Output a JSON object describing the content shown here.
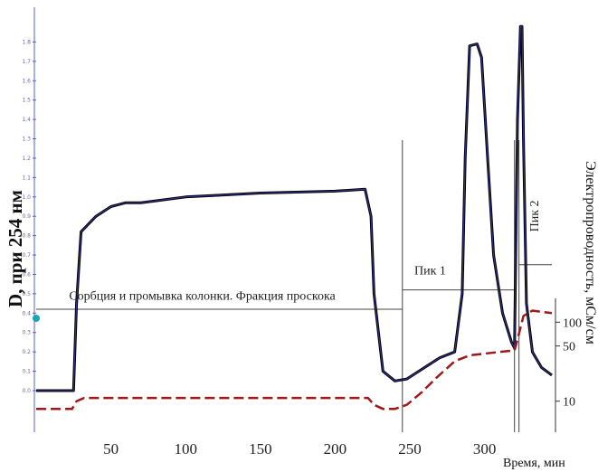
{
  "chart_data": {
    "type": "line",
    "ylabel": "D, при 254 нм",
    "y2label": "Электропроводность, мСм/см",
    "xlabel": "Время, мин",
    "xlim": [
      0,
      345
    ],
    "ylim": [
      0,
      1.9
    ],
    "y2lim": [
      5,
      200
    ],
    "y2_scale": "log",
    "x_ticks": [
      "50",
      "100",
      "150",
      "200",
      "250",
      "300"
    ],
    "y_ticks": [
      "0.0",
      "0.1",
      "0.2",
      "0.3",
      "0.4",
      "0.5",
      "0.6",
      "0.7",
      "0.8",
      "0.9",
      "1.0",
      "1.1",
      "1.2",
      "1.3",
      "1.4",
      "1.5",
      "1.6",
      "1.7",
      "1.8"
    ],
    "y2_ticks": [
      "10",
      "50",
      "100"
    ],
    "grid": false,
    "series": [
      {
        "axis": "left",
        "color": "#000000",
        "x": [
          0,
          25,
          27,
          30,
          40,
          50,
          60,
          70,
          80,
          100,
          150,
          200,
          220,
          224,
          226,
          232,
          240,
          248,
          260,
          270,
          280,
          285,
          287,
          290,
          295,
          298,
          302,
          306,
          312,
          318,
          320,
          322,
          324,
          325,
          326,
          328,
          332,
          338,
          345
        ],
        "y": [
          0,
          0,
          0.45,
          0.82,
          0.9,
          0.95,
          0.97,
          0.97,
          0.98,
          1.0,
          1.02,
          1.03,
          1.04,
          0.9,
          0.5,
          0.1,
          0.05,
          0.06,
          0.12,
          0.17,
          0.2,
          0.5,
          1.2,
          1.78,
          1.79,
          1.72,
          1.2,
          0.7,
          0.4,
          0.25,
          0.22,
          1.4,
          1.88,
          1.88,
          1.3,
          0.45,
          0.2,
          0.12,
          0.08
        ]
      },
      {
        "axis": "right",
        "color": "#a01818",
        "dashed": true,
        "x": [
          0,
          24,
          27,
          32,
          50,
          100,
          150,
          200,
          222,
          226,
          232,
          240,
          248,
          258,
          268,
          280,
          290,
          300,
          310,
          320,
          322,
          326,
          332,
          345
        ],
        "y": [
          8,
          8,
          10,
          11,
          11,
          11,
          11,
          11,
          11,
          9,
          8,
          8,
          9,
          13,
          20,
          32,
          38,
          40,
          42,
          44,
          60,
          120,
          140,
          130
        ]
      }
    ],
    "vlines": [
      245,
      320,
      323
    ],
    "hlines": [
      {
        "y": 0.42,
        "x": [
          0,
          245
        ]
      },
      {
        "y": 0.52,
        "x": [
          245,
          320
        ]
      },
      {
        "y": 0.65,
        "x": [
          323,
          345
        ]
      }
    ],
    "annotations": [
      {
        "text": "Сорбция и промывка колонки. Фракция проскока",
        "x": 22,
        "y": 0.47
      },
      {
        "text": "Пик 1",
        "x": 253,
        "y": 0.6
      },
      {
        "text": "Пик 2",
        "x": 336,
        "y": 0.82,
        "rotate": -90
      }
    ]
  }
}
